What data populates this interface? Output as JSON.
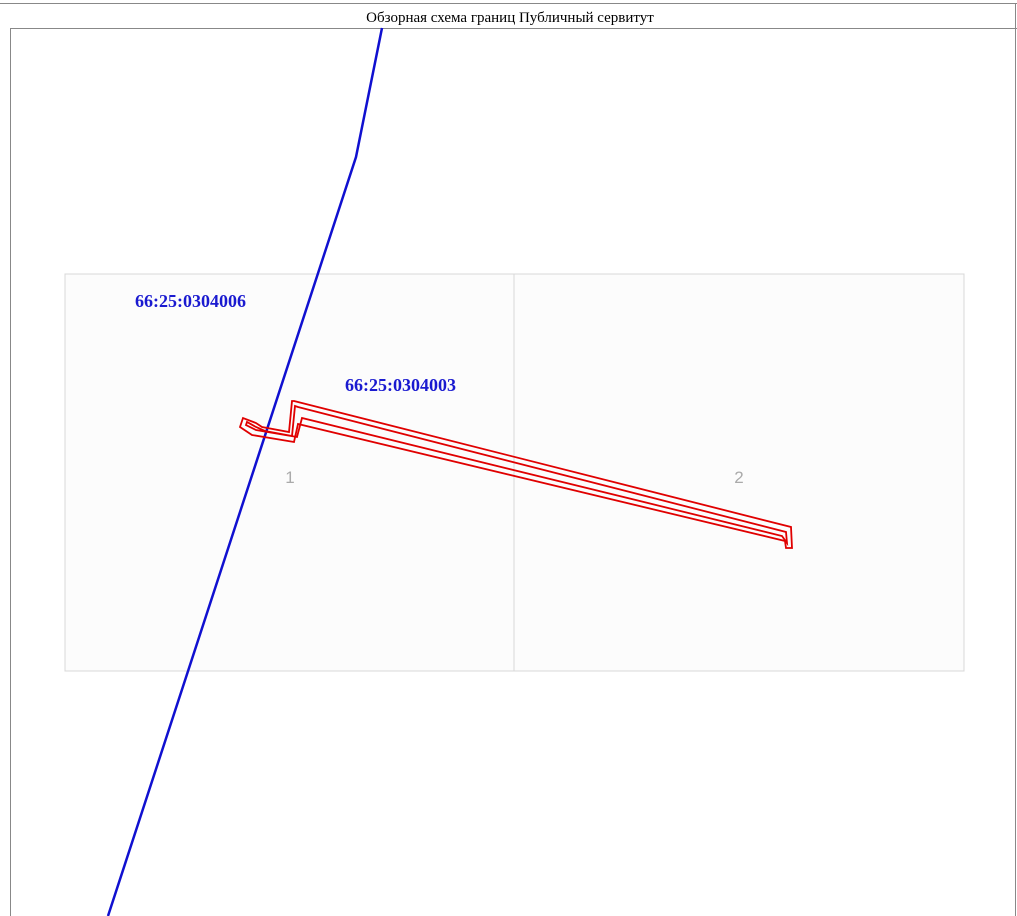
{
  "title": "Обзорная схема границ Публичный сервитут",
  "quarters": [
    {
      "label": "66:25:0304006"
    },
    {
      "label": "66:25:0304003"
    }
  ],
  "sheets": [
    {
      "label": "1"
    },
    {
      "label": "2"
    }
  ]
}
